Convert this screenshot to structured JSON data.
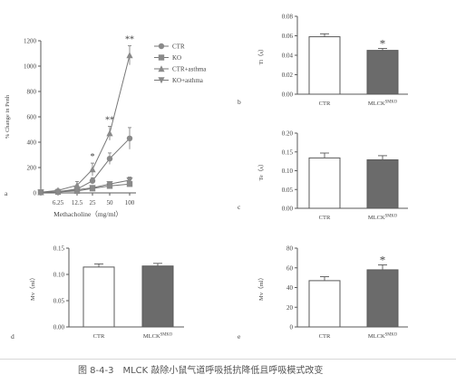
{
  "caption": "图 8-4-3　MLCK 敲除小鼠气道呼吸抵抗降低且呼吸模式改变",
  "colors": {
    "axis": "#5a5a5a",
    "bar_ctr": "#ffffff",
    "bar_ko": "#6b6b6b",
    "line": "#777777",
    "marker": "#8a8a8a"
  },
  "chart_data": [
    {
      "panel": "a",
      "type": "line",
      "xlabel": "Methacholine（mg/ml）",
      "ylabel": "% Change in Penh",
      "x": [
        "0",
        "6.25",
        "12.5",
        "25",
        "50",
        "100"
      ],
      "ylim": [
        0,
        1200
      ],
      "yticks": [
        0,
        200,
        400,
        600,
        800,
        1000,
        1200
      ],
      "series": [
        {
          "name": "CTR",
          "marker": "circle",
          "values": [
            5,
            10,
            30,
            95,
            270,
            430
          ],
          "errors": [
            5,
            8,
            15,
            25,
            45,
            85
          ]
        },
        {
          "name": "KO",
          "marker": "square",
          "values": [
            5,
            8,
            15,
            35,
            55,
            70
          ],
          "errors": [
            4,
            5,
            8,
            12,
            15,
            20
          ]
        },
        {
          "name": "CTR+asthma",
          "marker": "triangle-up",
          "values": [
            5,
            20,
            60,
            185,
            470,
            1085
          ],
          "errors": [
            5,
            10,
            30,
            50,
            55,
            75
          ]
        },
        {
          "name": "KO+asthma",
          "marker": "triangle-down",
          "values": [
            5,
            5,
            25,
            40,
            70,
            100
          ],
          "errors": [
            4,
            5,
            10,
            12,
            18,
            25
          ]
        }
      ],
      "annotations": [
        {
          "x": "25",
          "text": "*"
        },
        {
          "x": "50",
          "text": "**"
        },
        {
          "x": "100",
          "text": "**"
        }
      ],
      "legend": "top-right"
    },
    {
      "panel": "b",
      "type": "bar",
      "ylabel": "Ti（s）",
      "categories": [
        "CTR",
        "MLCK^SMKO"
      ],
      "values": [
        0.059,
        0.045
      ],
      "errors": [
        0.003,
        0.002
      ],
      "ylim": [
        0,
        0.08
      ],
      "yticks": [
        "0.00",
        "0.02",
        "0.04",
        "0.06",
        "0.08"
      ],
      "significance": [
        "",
        "*"
      ]
    },
    {
      "panel": "c",
      "type": "bar",
      "ylabel": "Te（s）",
      "categories": [
        "CTR",
        "MLCK^SMKO"
      ],
      "values": [
        0.134,
        0.129
      ],
      "errors": [
        0.013,
        0.011
      ],
      "ylim": [
        0,
        0.2
      ],
      "yticks": [
        "0.00",
        "0.05",
        "0.10",
        "0.15",
        "0.20"
      ],
      "significance": [
        "",
        ""
      ]
    },
    {
      "panel": "d",
      "type": "bar",
      "ylabel": "Mv（ml）",
      "categories": [
        "CTR",
        "MLCK^SMKO"
      ],
      "values": [
        0.114,
        0.116
      ],
      "errors": [
        0.006,
        0.005
      ],
      "ylim": [
        0,
        0.15
      ],
      "yticks": [
        "0.00",
        "0.05",
        "0.10",
        "0.15"
      ],
      "significance": [
        "",
        ""
      ]
    },
    {
      "panel": "e",
      "type": "bar",
      "ylabel": "Mv（ml）",
      "categories": [
        "CTR",
        "MLCK^SMKO"
      ],
      "values": [
        47,
        58
      ],
      "errors": [
        4,
        5
      ],
      "ylim": [
        0,
        80
      ],
      "yticks": [
        "0",
        "20",
        "40",
        "60",
        "80"
      ],
      "significance": [
        "",
        "*"
      ]
    }
  ]
}
